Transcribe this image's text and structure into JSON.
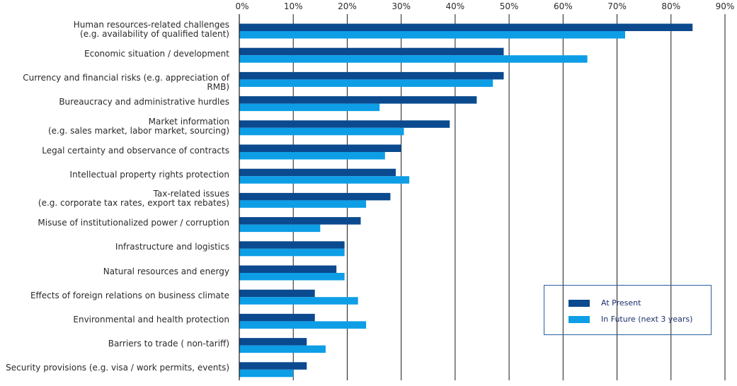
{
  "chart_data": {
    "type": "bar",
    "orientation": "horizontal",
    "categories": [
      [
        "Human resources-related challenges",
        "(e.g. availability of qualified talent)"
      ],
      [
        "Economic situation / development"
      ],
      [
        "Currency and financial risks (e.g. appreciation of RMB)"
      ],
      [
        "Bureaucracy and administrative hurdles"
      ],
      [
        "Market information",
        "(e.g. sales market, labor market, sourcing)"
      ],
      [
        "Legal certainty and observance of contracts"
      ],
      [
        "Intellectual property rights protection"
      ],
      [
        "Tax-related issues",
        "(e.g. corporate tax rates, export tax rebates)"
      ],
      [
        "Misuse of institutionalized power / corruption"
      ],
      [
        "Infrastructure and logistics"
      ],
      [
        "Natural resources and energy"
      ],
      [
        "Effects of foreign relations on business climate"
      ],
      [
        "Environmental and health protection"
      ],
      [
        "Barriers to trade ( non-tariff)"
      ],
      [
        "Security provisions (e.g. visa / work permits, events)"
      ]
    ],
    "series": [
      {
        "name": "At Present",
        "color": "#0b4a8f",
        "values": [
          84,
          49,
          49,
          44,
          39,
          30,
          29,
          28,
          22.5,
          19.5,
          18,
          14,
          14,
          12.5,
          12.5
        ]
      },
      {
        "name": "In Future (next 3 years)",
        "color": "#0d9ee6",
        "values": [
          71.5,
          64.5,
          47,
          26,
          30.5,
          27,
          31.5,
          23.5,
          15,
          19.5,
          19.5,
          22,
          23.5,
          16,
          10
        ]
      }
    ],
    "xlim": [
      0,
      90
    ],
    "x_ticks": [
      "0%",
      "10%",
      "20%",
      "30%",
      "40%",
      "50%",
      "60%",
      "70%",
      "80%",
      "90%"
    ],
    "grid": "vertical",
    "legend_position": "lower-right"
  }
}
